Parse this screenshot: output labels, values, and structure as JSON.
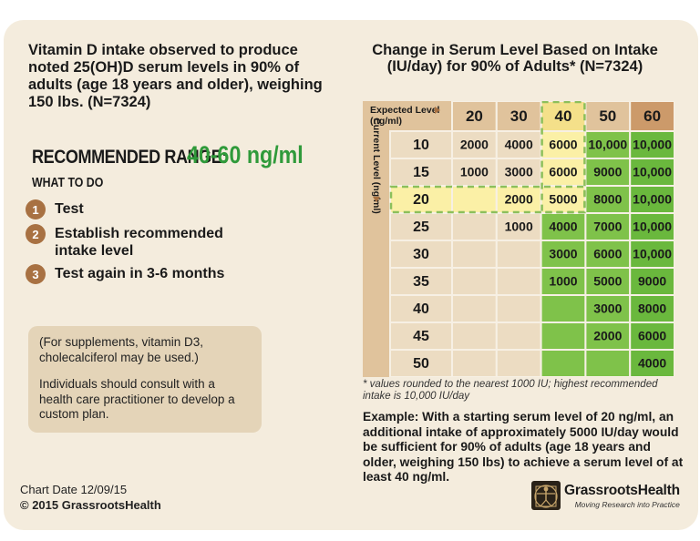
{
  "intro": {
    "heading": "Vitamin D intake observed to produce noted 25(OH)D serum levels in 90% of adults (age 18 years and older), weighing 150 lbs.  (N=7324)"
  },
  "recommended": {
    "label": "RECOMMENDED RANGE:",
    "value": "40-60 ng/ml"
  },
  "what_to_do": {
    "heading": "WHAT TO DO",
    "steps": [
      {
        "num": "1",
        "text": "Test"
      },
      {
        "num": "2",
        "text": "Establish recommended intake level"
      },
      {
        "num": "3",
        "text": "Test again in 3-6 months"
      }
    ]
  },
  "note": {
    "line1": "(For supplements, vitamin D3, cholecalciferol may be used.)",
    "line2": "Individuals should consult with a health care practitioner to develop a custom plan."
  },
  "footer": {
    "chart_date": "Chart Date 12/09/15",
    "copyright": "© 2015 GrassrootsHealth"
  },
  "chart_data": {
    "type": "table",
    "title": "Change in Serum Level Based on Intake (IU/day) for 90% of Adults* (N=7324)",
    "col_axis_label": "Expected Level (ng/ml)",
    "row_axis_label": "Current Level (ng/ml)",
    "columns": [
      "20",
      "30",
      "40",
      "50",
      "60"
    ],
    "rows": [
      {
        "level": "10",
        "values": [
          "2000",
          "4000",
          "6000",
          "10,000",
          "10,000"
        ]
      },
      {
        "level": "15",
        "values": [
          "1000",
          "3000",
          "6000",
          "9000",
          "10,000"
        ]
      },
      {
        "level": "20",
        "values": [
          "",
          "2000",
          "5000",
          "8000",
          "10,000"
        ]
      },
      {
        "level": "25",
        "values": [
          "",
          "1000",
          "4000",
          "7000",
          "10,000"
        ]
      },
      {
        "level": "30",
        "values": [
          "",
          "",
          "3000",
          "6000",
          "10,000"
        ]
      },
      {
        "level": "35",
        "values": [
          "",
          "",
          "1000",
          "5000",
          "9000"
        ]
      },
      {
        "level": "40",
        "values": [
          "",
          "",
          "",
          "3000",
          "8000"
        ]
      },
      {
        "level": "45",
        "values": [
          "",
          "",
          "",
          "2000",
          "6000"
        ]
      },
      {
        "level": "50",
        "values": [
          "",
          "",
          "",
          "",
          "4000"
        ]
      }
    ],
    "recommended_columns": [
      "40",
      "50",
      "60"
    ],
    "highlight_column": "40",
    "highlight_row": "20",
    "colors": {
      "header_bg": "#e0c39c",
      "header_40": "#f4e08a",
      "header_60": "#cc9a6a",
      "row_axis_bg": "#e0c39c",
      "cell_bg": "#ecdcc2",
      "green": "#7fc24a",
      "green_dark": "#6ab83d",
      "highlight": "#fbf0a6",
      "dash": "#8cbf5b",
      "grid_line": "#f7f0e4"
    }
  },
  "footnote": "* values rounded to the nearest 1000 IU; highest recommended intake is 10,000 IU/day",
  "example": "Example: With a starting serum level of 20 ng/ml, an additional intake of approximately 5000 IU/day would be sufficient for 90% of adults (age 18 years and older, weighing 150 lbs) to achieve a serum level of at least 40 ng/ml.",
  "logo": {
    "name": "GrassrootsHealth",
    "tagline": "Moving Research into Practice"
  }
}
